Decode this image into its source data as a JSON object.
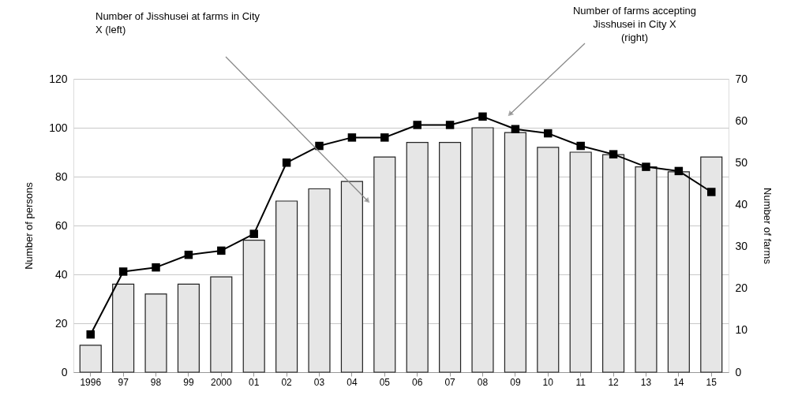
{
  "chart_data": {
    "type": "bar",
    "categories": [
      "1996",
      "97",
      "98",
      "99",
      "2000",
      "01",
      "02",
      "03",
      "04",
      "05",
      "06",
      "07",
      "08",
      "09",
      "10",
      "11",
      "12",
      "13",
      "14",
      "15"
    ],
    "ylabel": "Number of persons",
    "y2label": "Number of farms",
    "ylim": [
      0,
      120
    ],
    "yticks": [
      0,
      20,
      40,
      60,
      80,
      100,
      120
    ],
    "y2lim": [
      0,
      70
    ],
    "y2ticks": [
      0,
      10,
      20,
      30,
      40,
      50,
      60,
      70
    ],
    "grid": "y",
    "marker": "square",
    "annotations": [
      "Number of Jisshusei at farms in City X (left)",
      "Number of farms accepting Jisshusei in City X (right)"
    ],
    "series": [
      {
        "color": "#e6e6e6",
        "values": [
          11,
          36,
          32,
          36,
          39,
          54,
          70,
          75,
          78,
          88,
          94,
          94,
          100,
          98,
          92,
          90,
          89,
          84,
          82,
          88
        ]
      },
      {
        "type": "line",
        "axis": "y2",
        "color": "#000000",
        "values": [
          9,
          24,
          25,
          28,
          29,
          33,
          50,
          54,
          56,
          56,
          59,
          59,
          61,
          58,
          57,
          54,
          52,
          49,
          48,
          43
        ]
      }
    ]
  }
}
